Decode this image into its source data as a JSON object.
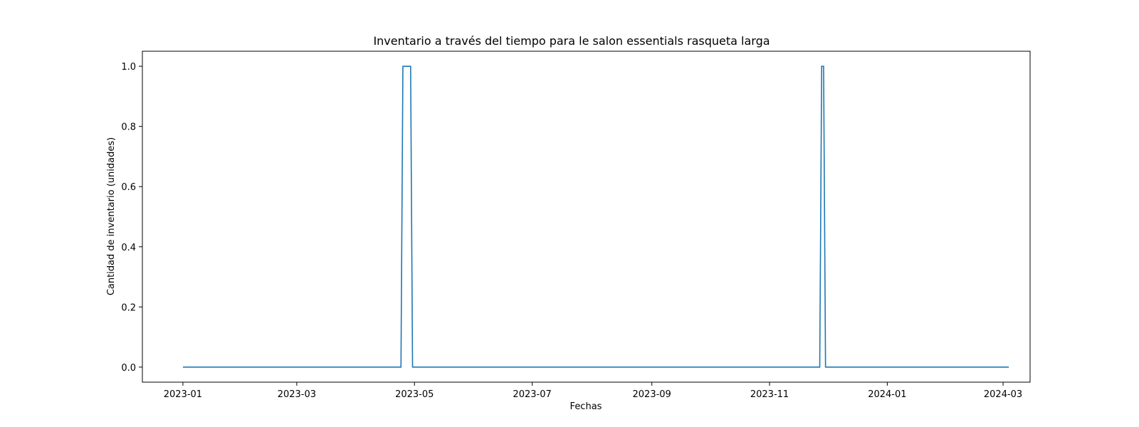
{
  "chart_data": {
    "type": "line",
    "title": "Inventario a través del tiempo para le salon essentials rasqueta larga",
    "xlabel": "Fechas",
    "ylabel": "Cantidad de inventario (unidades)",
    "x_ticks": [
      "2023-01",
      "2023-03",
      "2023-05",
      "2023-07",
      "2023-09",
      "2023-11",
      "2024-01",
      "2024-03"
    ],
    "y_ticks": [
      "0.0",
      "0.2",
      "0.4",
      "0.6",
      "0.8",
      "1.0"
    ],
    "ylim": [
      -0.05,
      1.05
    ],
    "xlim": [
      "2022-12-11",
      "2024-03-15"
    ],
    "grid": false,
    "legend": "none",
    "line_color": "#1f77b4",
    "series": [
      {
        "x": [
          "2023-01-01",
          "2023-04-24",
          "2023-04-25",
          "2023-04-29",
          "2023-04-30",
          "2023-11-27",
          "2023-11-28",
          "2023-11-29",
          "2023-11-30",
          "2024-03-04"
        ],
        "values": [
          0,
          0,
          1,
          1,
          0,
          0,
          1,
          1,
          0,
          0
        ]
      }
    ]
  }
}
